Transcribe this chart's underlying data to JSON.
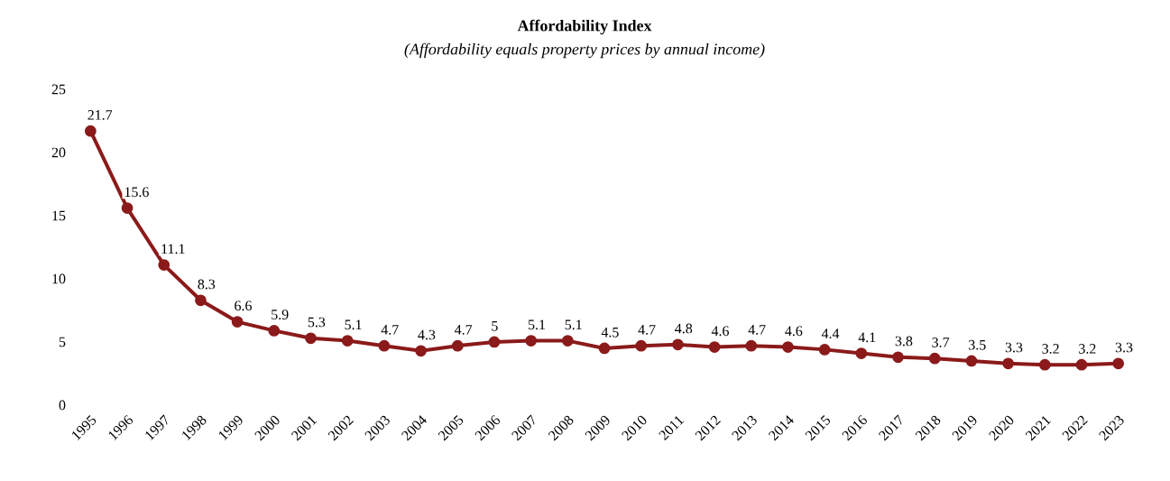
{
  "chart_data": {
    "type": "line",
    "title": "Affordability Index",
    "subtitle": "(Affordability equals property prices by annual income)",
    "categories": [
      "1995",
      "1996",
      "1997",
      "1998",
      "1999",
      "2000",
      "2001",
      "2002",
      "2003",
      "2004",
      "2005",
      "2006",
      "2007",
      "2008",
      "2009",
      "2010",
      "2011",
      "2012",
      "2013",
      "2014",
      "2015",
      "2016",
      "2017",
      "2018",
      "2019",
      "2020",
      "2021",
      "2022",
      "2023"
    ],
    "values": [
      21.7,
      15.6,
      11.1,
      8.3,
      6.6,
      5.9,
      5.3,
      5.1,
      4.7,
      4.3,
      4.7,
      5,
      5.1,
      5.1,
      4.5,
      4.7,
      4.8,
      4.6,
      4.7,
      4.6,
      4.4,
      4.1,
      3.8,
      3.7,
      3.5,
      3.3,
      3.2,
      3.2,
      3.3
    ],
    "color": "#8b1a1a",
    "marker": "circle",
    "data_labels": true,
    "grid": false,
    "ylim": [
      0,
      25
    ],
    "yticks": [
      0,
      5,
      10,
      15,
      20,
      25
    ]
  }
}
